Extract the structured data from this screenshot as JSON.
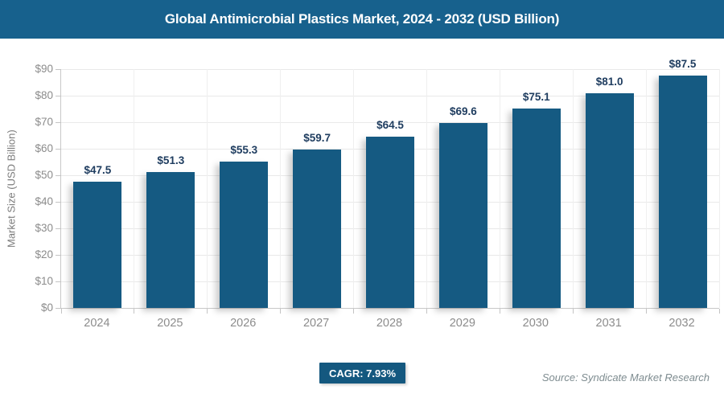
{
  "header": {
    "title": "Global Antimicrobial Plastics Market, 2024 - 2032 (USD Billion)"
  },
  "chart_data": {
    "type": "bar",
    "title": "Global Antimicrobial Plastics Market, 2024 - 2032 (USD Billion)",
    "categories": [
      "2024",
      "2025",
      "2026",
      "2027",
      "2028",
      "2029",
      "2030",
      "2031",
      "2032"
    ],
    "values": [
      47.5,
      51.3,
      55.3,
      59.7,
      64.5,
      69.6,
      75.1,
      81.0,
      87.5
    ],
    "value_labels": [
      "$47.5",
      "$51.3",
      "$55.3",
      "$59.7",
      "$64.5",
      "$69.6",
      "$75.1",
      "$81.0",
      "$87.5"
    ],
    "xlabel": "",
    "ylabel": "Market Size (USD Billion)",
    "ylim": [
      0,
      90
    ],
    "ytick_step": 10,
    "ytick_labels": [
      "$0",
      "$10",
      "$20",
      "$30",
      "$40",
      "$50",
      "$60",
      "$70",
      "$80",
      "$90"
    ],
    "grid": true,
    "legend": "none"
  },
  "footer": {
    "cagr_label": "CAGR: 7.93%",
    "source": "Source: Syndicate Market Research"
  },
  "colors": {
    "header_bg": "#17618d",
    "header_text": "#ffffff",
    "bar": "#155a82",
    "value_label": "#1e3c5f",
    "badge_bg": "#14587f",
    "badge_text": "#ffffff"
  }
}
